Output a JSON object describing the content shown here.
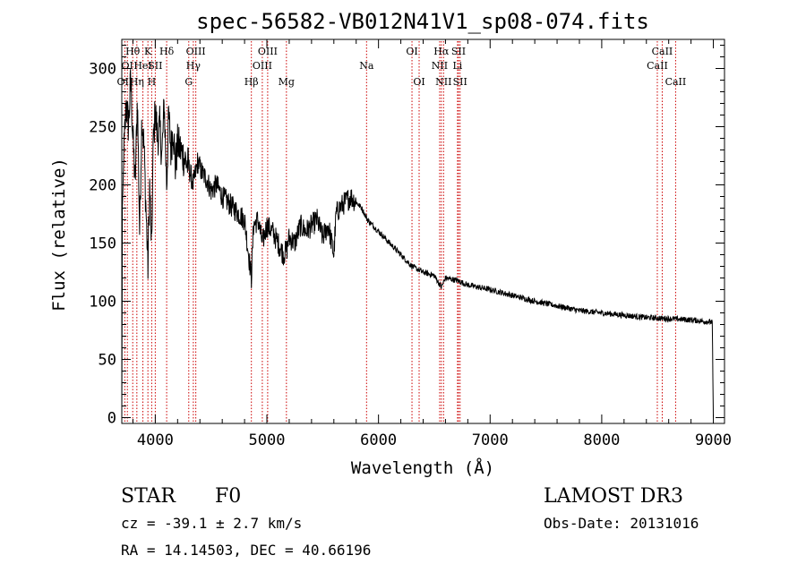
{
  "chart_data": {
    "type": "line",
    "title": "spec-56582-VB012N41V1_sp08-074.fits",
    "xlabel": "Wavelength (Å)",
    "ylabel": "Flux (relative)",
    "xlim": [
      3700,
      9100
    ],
    "ylim": [
      -5,
      325
    ],
    "x_ticks": [
      4000,
      5000,
      6000,
      7000,
      8000,
      9000
    ],
    "y_ticks": [
      0,
      50,
      100,
      150,
      200,
      250,
      300
    ],
    "series": [
      {
        "name": "spectrum",
        "x": [
          3700,
          3705,
          3720,
          3740,
          3760,
          3780,
          3800,
          3820,
          3840,
          3860,
          3880,
          3900,
          3920,
          3934,
          3950,
          3968,
          3980,
          4000,
          4020,
          4040,
          4060,
          4080,
          4102,
          4120,
          4140,
          4160,
          4180,
          4200,
          4250,
          4300,
          4340,
          4380,
          4420,
          4460,
          4500,
          4550,
          4600,
          4650,
          4700,
          4750,
          4800,
          4861,
          4880,
          4920,
          4960,
          5000,
          5050,
          5100,
          5150,
          5180,
          5200,
          5250,
          5300,
          5350,
          5400,
          5450,
          5500,
          5550,
          5600,
          5620,
          5650,
          5700,
          5750,
          5800,
          5850,
          5900,
          6000,
          6100,
          6200,
          6300,
          6400,
          6500,
          6563,
          6600,
          6700,
          6800,
          7000,
          7200,
          7400,
          7600,
          7800,
          8000,
          8200,
          8400,
          8600,
          8800,
          8990,
          9000
        ],
        "values": [
          0,
          180,
          230,
          270,
          250,
          290,
          240,
          200,
          275,
          160,
          260,
          230,
          170,
          130,
          200,
          140,
          230,
          265,
          240,
          250,
          225,
          270,
          200,
          260,
          230,
          250,
          215,
          235,
          225,
          215,
          200,
          220,
          210,
          205,
          195,
          200,
          190,
          185,
          180,
          175,
          170,
          120,
          165,
          170,
          150,
          165,
          160,
          150,
          140,
          145,
          155,
          150,
          165,
          160,
          165,
          170,
          155,
          165,
          140,
          175,
          180,
          185,
          190,
          185,
          180,
          170,
          160,
          150,
          140,
          130,
          125,
          122,
          112,
          120,
          118,
          114,
          110,
          105,
          100,
          96,
          92,
          90,
          88,
          86,
          85,
          84,
          82,
          0
        ]
      }
    ],
    "spectral_lines": [
      {
        "wavelength": 3727,
        "label": "OII",
        "row": 3
      },
      {
        "wavelength": 3750,
        "label": "OI",
        "row": 2
      },
      {
        "wavelength": 3798,
        "label": "Hθ",
        "row": 1
      },
      {
        "wavelength": 3835,
        "label": "Hη",
        "row": 3
      },
      {
        "wavelength": 3889,
        "label": "HeI",
        "row": 2
      },
      {
        "wavelength": 3934,
        "label": "K",
        "row": 1
      },
      {
        "wavelength": 3968,
        "label": "H",
        "row": 3
      },
      {
        "wavelength": 4000,
        "label": "SII",
        "row": 2
      },
      {
        "wavelength": 4102,
        "label": "Hδ",
        "row": 1
      },
      {
        "wavelength": 4300,
        "label": "G",
        "row": 3
      },
      {
        "wavelength": 4341,
        "label": "Hγ",
        "row": 2
      },
      {
        "wavelength": 4363,
        "label": "OIII",
        "row": 1
      },
      {
        "wavelength": 4861,
        "label": "Hβ",
        "row": 3
      },
      {
        "wavelength": 4959,
        "label": "OIII",
        "row": 2
      },
      {
        "wavelength": 5007,
        "label": "OIII",
        "row": 1
      },
      {
        "wavelength": 5175,
        "label": "Mg",
        "row": 3
      },
      {
        "wavelength": 5893,
        "label": "Na",
        "row": 2
      },
      {
        "wavelength": 6300,
        "label": "OI",
        "row": 1
      },
      {
        "wavelength": 6364,
        "label": "OI",
        "row": 3
      },
      {
        "wavelength": 6548,
        "label": "NII",
        "row": 2
      },
      {
        "wavelength": 6563,
        "label": "Hα",
        "row": 1
      },
      {
        "wavelength": 6583,
        "label": "NII",
        "row": 3
      },
      {
        "wavelength": 6708,
        "label": "Li",
        "row": 2
      },
      {
        "wavelength": 6717,
        "label": "SII",
        "row": 1
      },
      {
        "wavelength": 6731,
        "label": "SII",
        "row": 3
      },
      {
        "wavelength": 8498,
        "label": "CaII",
        "row": 2
      },
      {
        "wavelength": 8542,
        "label": "CaII",
        "row": 1
      },
      {
        "wavelength": 8662,
        "label": "CaII",
        "row": 3
      }
    ],
    "line_color": "#cc0000",
    "spectrum_color": "#000000"
  },
  "info": {
    "object_type": "STAR",
    "subclass": "F0",
    "survey": "LAMOST DR3",
    "cz_line": "cz = -39.1 ± 2.7 km/s",
    "obs_date": "Obs-Date: 20131016",
    "radec": "RA =  14.14503, DEC =  40.66196"
  }
}
